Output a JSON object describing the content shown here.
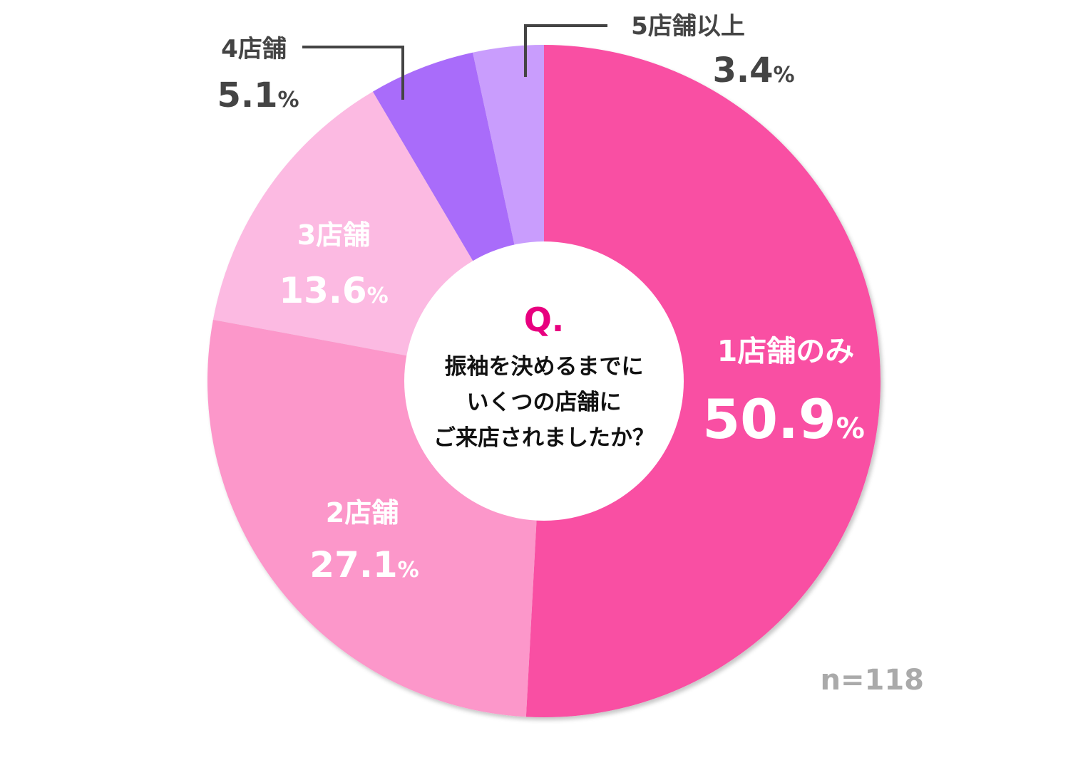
{
  "chart_data": {
    "type": "pie",
    "categories": [
      "1店舗のみ",
      "2店舗",
      "3店舗",
      "4店舗",
      "5店舗以上"
    ],
    "values": [
      50.9,
      27.1,
      13.6,
      5.1,
      3.4
    ],
    "value_labels": [
      "50.9",
      "27.1",
      "13.6",
      "5.1",
      "3.4"
    ],
    "unit": "%",
    "colors": [
      "#f94fa3",
      "#fc97ca",
      "#fcbae2",
      "#a96cfa",
      "#c99dfd"
    ],
    "label_colors": [
      "#ffffff",
      "#ffffff",
      "#ffffff",
      "#444444",
      "#444444"
    ],
    "donut": true,
    "sample_size": "n=118"
  },
  "question": {
    "prefix": "Q.",
    "lines": [
      "振袖を決めるまでに",
      "いくつの店舗に",
      "ご来店されましたか？"
    ],
    "prefix_color": "#e8007f"
  }
}
